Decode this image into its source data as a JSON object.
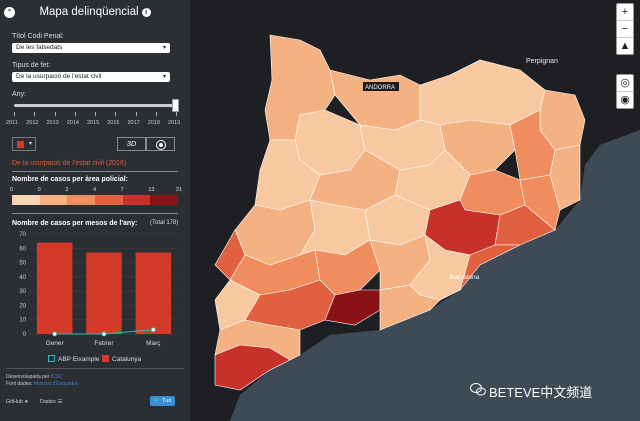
{
  "sidebar": {
    "title": "Mapa delinqüencial",
    "collapse_icon": "⌃",
    "info_icon": "i",
    "codi_penal_label": "Títol Codi Penal:",
    "codi_penal_value": "De les falsedats",
    "tipus_fet_label": "Tipus de fet:",
    "tipus_fet_value": "De la usurpació de l'estat civil",
    "any_label": "Any:",
    "years": [
      "2011",
      "2012",
      "2013",
      "2014",
      "2015",
      "2016",
      "2017",
      "2018",
      "2019"
    ],
    "selected_year_fraction": 1.0,
    "btn_3d": "3D",
    "subtitle": "De la usurpació de l'estat civil (2016)",
    "legend_title": "Nombre de casos per àrea policial:",
    "legend_breaks": [
      "0",
      "0",
      "2",
      "4",
      "7",
      "13",
      "21"
    ],
    "legend_colors": [
      "#f8d5b4",
      "#f4b283",
      "#ef8d5e",
      "#e0603f",
      "#c8312a",
      "#8a1116"
    ],
    "chart_title": "Nombre de casos per mesos de l'any:",
    "chart_total": "(Total 178)",
    "credits_line1": "Desenvolupada per",
    "credits_link1": "ICSC",
    "credits_line2": "Font dades:",
    "credits_link2": "Mossos d'Esquadra",
    "github": "GitHub",
    "dades": "Dades",
    "tuit": "Tuit"
  },
  "chart_data": {
    "type": "bar",
    "categories": [
      "Gener",
      "Febrer",
      "Març"
    ],
    "series": [
      {
        "name": "Catalunya",
        "type": "bar",
        "color": "#d33a27",
        "values": [
          64,
          57,
          57
        ]
      },
      {
        "name": "ABP Eixample",
        "type": "line",
        "color": "#3ab5bd",
        "values": [
          0,
          0,
          3
        ]
      }
    ],
    "yticks": [
      "0",
      "10",
      "20",
      "30",
      "40",
      "50",
      "60",
      "70"
    ],
    "ylim": [
      0,
      70
    ]
  },
  "map": {
    "label_perpignan": "Perpignan",
    "label_andorra": "ANDORRA",
    "label_barcelona": "Barcelona",
    "controls": [
      "+",
      "−",
      "▲"
    ],
    "camera_icon": "◉"
  },
  "watermark": "BETEVE中文频道"
}
